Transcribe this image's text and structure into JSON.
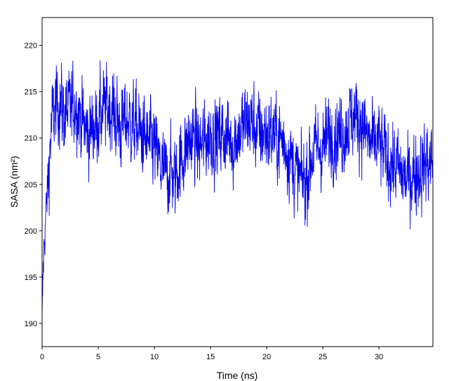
{
  "chart_data": {
    "type": "line",
    "title": "",
    "xlabel": "Time (ns)",
    "ylabel": "SASA (nm²)",
    "xlim": [
      0,
      34.8
    ],
    "ylim": [
      187.5,
      223
    ],
    "xticks": [
      0,
      5,
      10,
      15,
      20,
      25,
      30
    ],
    "yticks": [
      190,
      195,
      200,
      205,
      210,
      215,
      220
    ],
    "grid": false,
    "legend": "none",
    "line_color": "#0000ee",
    "series": [
      {
        "x": [
          0,
          0.1,
          0.2,
          0.3,
          0.4,
          0.5,
          0.7,
          0.9,
          1.2,
          1.5,
          2,
          2.5,
          3,
          3.5,
          4,
          4.5,
          5,
          5.5,
          6,
          6.5,
          7,
          7.5,
          8,
          8.5,
          9,
          9.5,
          10,
          10.5,
          11,
          11.5,
          11.8,
          12,
          12.5,
          13,
          13.5,
          14,
          14.5,
          15,
          15.5,
          16,
          16.5,
          17,
          17.5,
          18,
          18.5,
          19,
          19.5,
          20,
          20.5,
          21,
          21.5,
          22,
          22.5,
          23,
          23.5,
          24,
          24.5,
          25,
          25.5,
          26,
          26.5,
          27,
          27.5,
          28,
          28.5,
          29,
          29.5,
          30,
          30.5,
          31,
          31.5,
          32,
          32.5,
          33,
          33.5,
          34,
          34.8
        ],
        "values": [
          189.5,
          196,
          199,
          201,
          203,
          204.5,
          209,
          212,
          213,
          214,
          212.5,
          213,
          214,
          212,
          210.5,
          211,
          212,
          213,
          213.5,
          212.5,
          211,
          212,
          211.5,
          211,
          210,
          209.5,
          209,
          207,
          206,
          206.5,
          205.5,
          206.5,
          208,
          209.5,
          210,
          209,
          209.5,
          210.5,
          210,
          210.5,
          210,
          209.5,
          210.5,
          211.5,
          212,
          211,
          210.5,
          210.5,
          210.5,
          210,
          209.5,
          208.5,
          206.5,
          205.5,
          205.5,
          208,
          209,
          209,
          210,
          210.5,
          210.5,
          211,
          212,
          212.5,
          211.5,
          210,
          209,
          209.5,
          208,
          207.5,
          207,
          206,
          205.5,
          206,
          206.5,
          207,
          207.5
        ]
      }
    ]
  }
}
